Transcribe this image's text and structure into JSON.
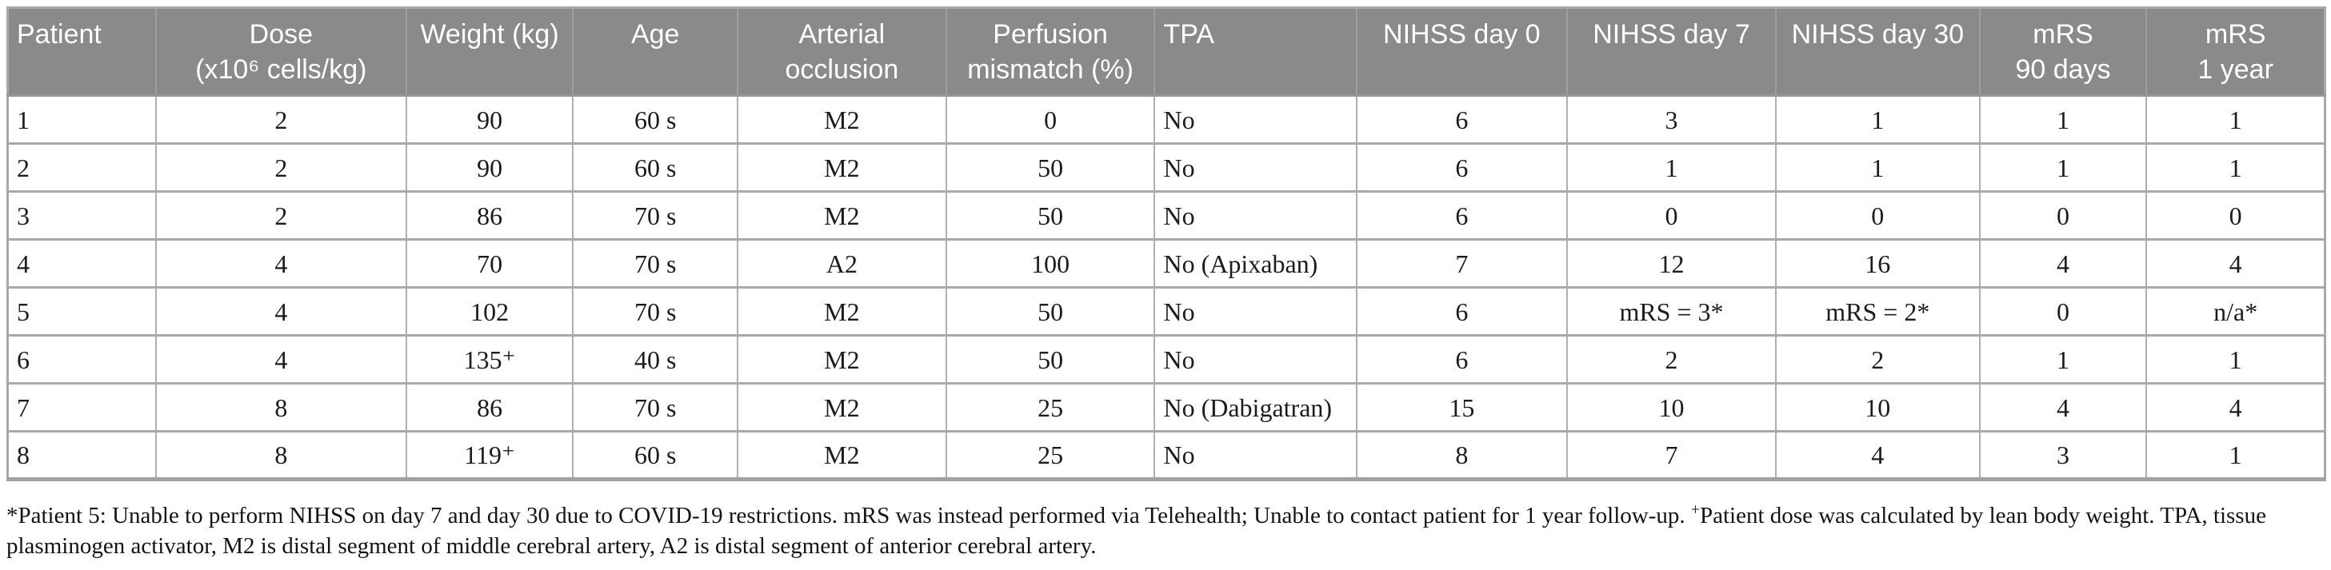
{
  "table": {
    "columns": [
      {
        "label": "Patient"
      },
      {
        "label": "Dose\n(x10⁶ cells/kg)"
      },
      {
        "label": "Weight (kg)"
      },
      {
        "label": "Age"
      },
      {
        "label": "Arterial\nocclusion"
      },
      {
        "label": "Perfusion\nmismatch (%)"
      },
      {
        "label": "TPA"
      },
      {
        "label": "NIHSS day 0"
      },
      {
        "label": "NIHSS day 7"
      },
      {
        "label": "NIHSS day 30"
      },
      {
        "label": "mRS\n90 days"
      },
      {
        "label": "mRS\n1 year"
      }
    ],
    "rows": [
      [
        "1",
        "2",
        "90",
        "60 s",
        "M2",
        "0",
        "No",
        "6",
        "3",
        "1",
        "1",
        "1"
      ],
      [
        "2",
        "2",
        "90",
        "60 s",
        "M2",
        "50",
        "No",
        "6",
        "1",
        "1",
        "1",
        "1"
      ],
      [
        "3",
        "2",
        "86",
        "70 s",
        "M2",
        "50",
        "No",
        "6",
        "0",
        "0",
        "0",
        "0"
      ],
      [
        "4",
        "4",
        "70",
        "70 s",
        "A2",
        "100",
        "No (Apixaban)",
        "7",
        "12",
        "16",
        "4",
        "4"
      ],
      [
        "5",
        "4",
        "102",
        "70 s",
        "M2",
        "50",
        "No",
        "6",
        "mRS = 3*",
        "mRS = 2*",
        "0",
        "n/a*"
      ],
      [
        "6",
        "4",
        "135⁺",
        "40 s",
        "M2",
        "50",
        "No",
        "6",
        "2",
        "2",
        "1",
        "1"
      ],
      [
        "7",
        "8",
        "86",
        "70 s",
        "M2",
        "25",
        "No (Dabigatran)",
        "15",
        "10",
        "10",
        "4",
        "4"
      ],
      [
        "8",
        "8",
        "119⁺",
        "60 s",
        "M2",
        "25",
        "No",
        "8",
        "7",
        "4",
        "3",
        "1"
      ]
    ]
  },
  "footnote": {
    "part1": "*Patient 5: Unable to perform NIHSS on day 7 and day 30 due to COVID-19 restrictions. mRS was instead performed via Telehealth; Unable to contact patient for 1 year follow-up. ",
    "superscript": "+",
    "part2": "Patient dose was calculated by lean body weight. TPA, tissue plasminogen activator, M2 is distal segment of middle cerebral artery, A2 is distal segment of anterior cerebral artery."
  },
  "colors": {
    "header_bg": "#8a8a8a",
    "header_text": "#ffffff",
    "border": "#a9a9a9",
    "body_text": "#1c1c1c"
  }
}
